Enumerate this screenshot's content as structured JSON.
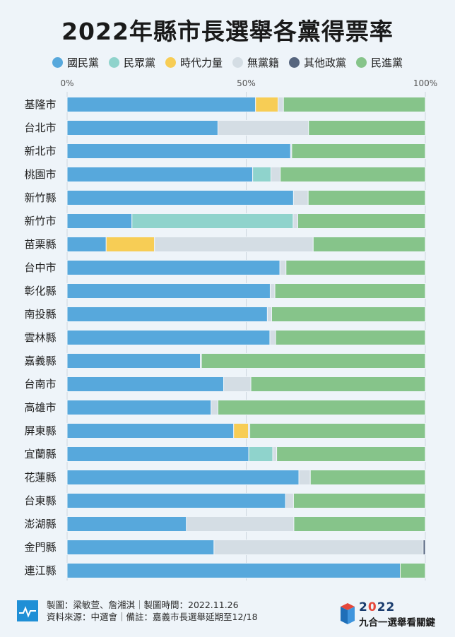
{
  "title": "2022年縣市長選舉各黨得票率",
  "legend": [
    {
      "name": "國民黨",
      "color": "#57a8dc"
    },
    {
      "name": "民眾黨",
      "color": "#8fd3cc"
    },
    {
      "name": "時代力量",
      "color": "#f7cd55"
    },
    {
      "name": "無黨籍",
      "color": "#d4dde4"
    },
    {
      "name": "其他政黨",
      "color": "#56657e"
    },
    {
      "name": "民進黨",
      "color": "#86c48a"
    }
  ],
  "footer": {
    "line1": "製圖：梁敏萱、詹湘淇｜製圖時間：2022.11.26",
    "line2": "資料來源：中選會｜備註：嘉義市長選舉延期至12/18",
    "brand_year_prefix": "2",
    "brand_year_highlight": "0",
    "brand_year_suffix": "22",
    "brand_name": "九合一選舉看關鍵"
  },
  "chart_data": {
    "type": "bar",
    "orientation": "horizontal",
    "stacked": true,
    "xlim": [
      0,
      100
    ],
    "xticks": [
      "0%",
      "50%",
      "100%"
    ],
    "grid": true,
    "categories": [
      "基隆市",
      "台北市",
      "新北市",
      "桃園市",
      "新竹縣",
      "新竹市",
      "苗栗縣",
      "台中市",
      "彰化縣",
      "南投縣",
      "雲林縣",
      "嘉義縣",
      "台南市",
      "高雄市",
      "屏東縣",
      "宜蘭縣",
      "花蓮縣",
      "台東縣",
      "澎湖縣",
      "金門縣",
      "連江縣"
    ],
    "series": [
      {
        "name": "國民黨",
        "color": "#57a8dc",
        "values": [
          52.6,
          42.1,
          62.4,
          51.8,
          63.2,
          18.1,
          10.9,
          59.4,
          56.7,
          55.9,
          56.6,
          37.2,
          43.7,
          40.2,
          46.5,
          50.7,
          64.7,
          61.0,
          33.3,
          41.0,
          93.0
        ]
      },
      {
        "name": "民眾黨",
        "color": "#8fd3cc",
        "values": [
          0,
          0,
          0,
          5.1,
          0,
          45.0,
          0,
          0,
          0,
          0,
          0,
          0,
          0,
          0,
          0,
          6.7,
          0,
          0,
          0,
          0,
          0
        ]
      },
      {
        "name": "時代力量",
        "color": "#f7cd55",
        "values": [
          6.3,
          0,
          0,
          0,
          0,
          0,
          13.5,
          0,
          0,
          0,
          0,
          0,
          0,
          0,
          4.1,
          0,
          0,
          0,
          0,
          0,
          0
        ]
      },
      {
        "name": "無黨籍",
        "color": "#d4dde4",
        "values": [
          1.5,
          25.3,
          0.3,
          2.6,
          4.1,
          1.3,
          44.3,
          1.7,
          1.3,
          1.2,
          1.6,
          0.3,
          7.6,
          1.9,
          0.4,
          1.1,
          3.2,
          2.2,
          30.0,
          58.4,
          0
        ]
      },
      {
        "name": "其他政黨",
        "color": "#56657e",
        "values": [
          0,
          0,
          0,
          0,
          0,
          0,
          0,
          0,
          0,
          0,
          0,
          0,
          0,
          0,
          0,
          0,
          0,
          0,
          0,
          0.6,
          0
        ]
      },
      {
        "name": "民進黨",
        "color": "#86c48a",
        "values": [
          39.6,
          32.6,
          37.3,
          40.5,
          32.7,
          35.6,
          31.3,
          38.9,
          42.0,
          42.9,
          41.8,
          62.5,
          48.7,
          57.9,
          49.0,
          41.5,
          32.1,
          36.8,
          36.7,
          0,
          7.0
        ]
      }
    ]
  }
}
